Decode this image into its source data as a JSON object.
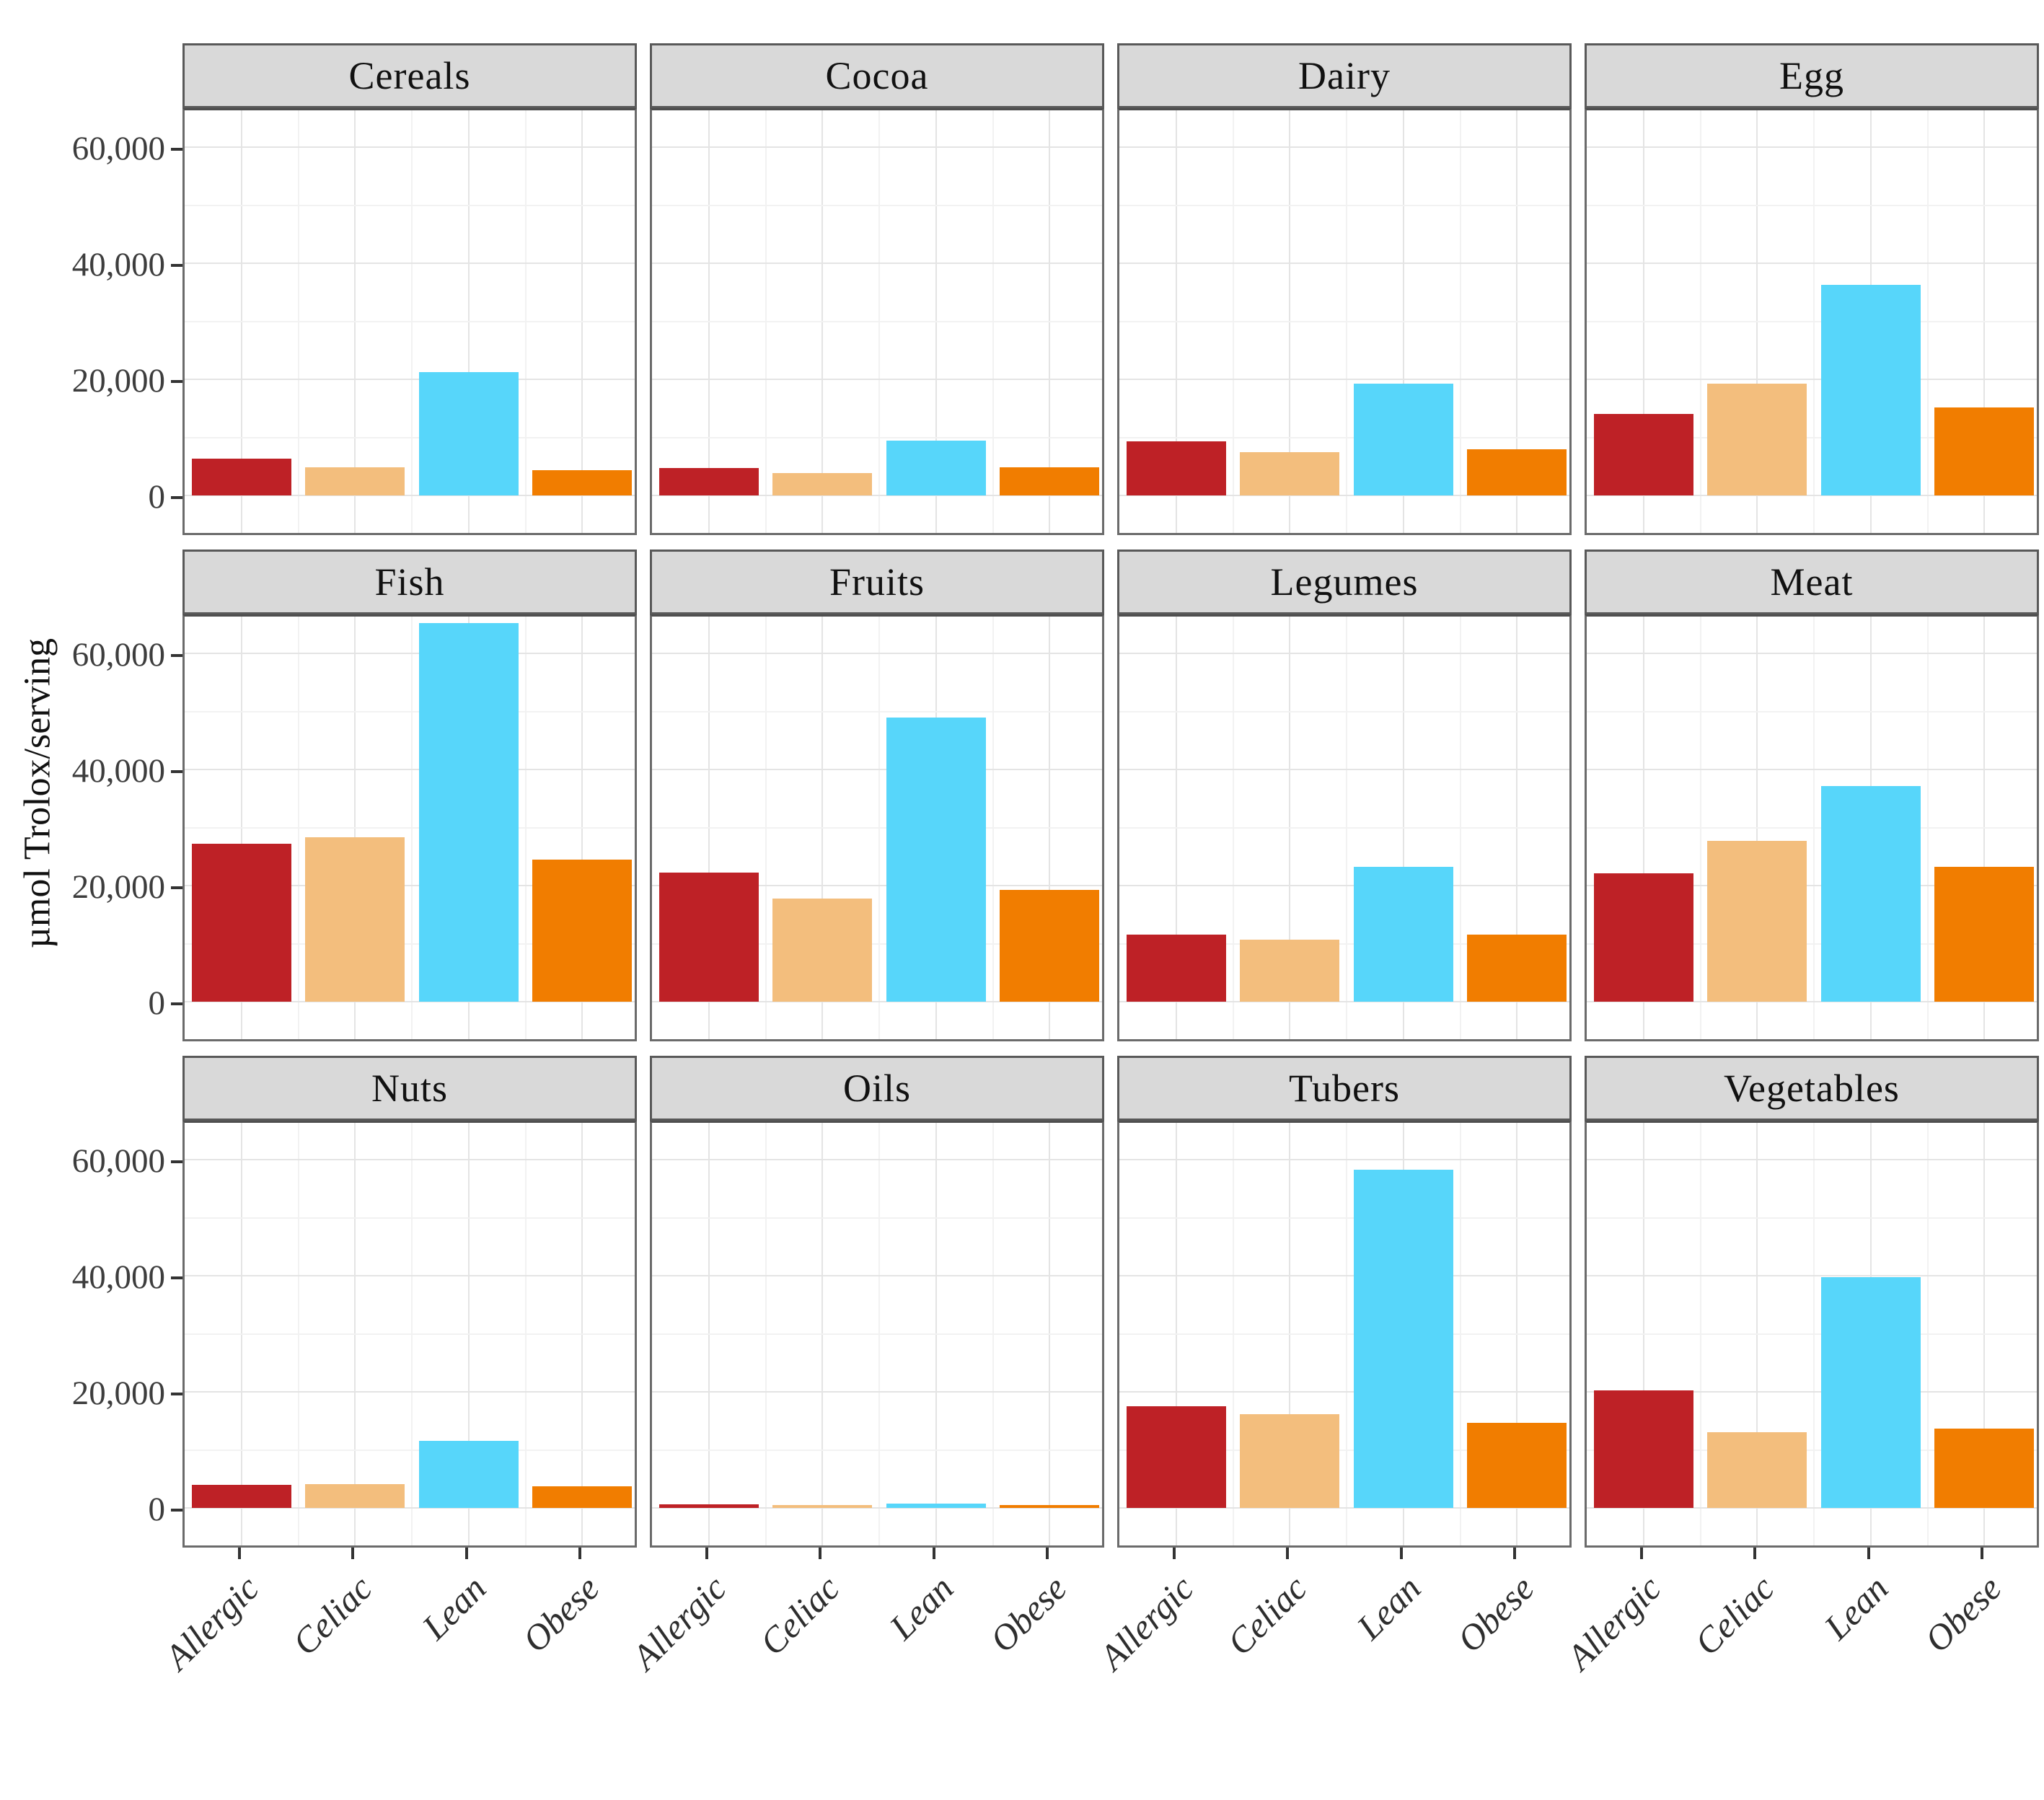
{
  "chart_data": {
    "type": "bar",
    "title": "",
    "xlabel": "",
    "ylabel": "µmol Trolox/serving",
    "categories": [
      "Allergic",
      "Celiac",
      "Lean",
      "Obese"
    ],
    "y_ticks": [
      {
        "value": 0,
        "label": "0"
      },
      {
        "value": 20000,
        "label": "20,000"
      },
      {
        "value": 40000,
        "label": "40,000"
      },
      {
        "value": 60000,
        "label": "60,000"
      }
    ],
    "y_minor_ticks": [
      10000,
      30000,
      50000
    ],
    "ylim": [
      0,
      66000
    ],
    "grid": true,
    "legend_position": "none",
    "facets": [
      {
        "name": "Cereals",
        "values": [
          6300,
          4900,
          21200,
          4400
        ]
      },
      {
        "name": "Cocoa",
        "values": [
          4700,
          3800,
          9400,
          4900
        ]
      },
      {
        "name": "Dairy",
        "values": [
          9300,
          7500,
          19200,
          8000
        ]
      },
      {
        "name": "Egg",
        "values": [
          14000,
          19200,
          36300,
          15200
        ]
      },
      {
        "name": "Fish",
        "values": [
          27200,
          28300,
          65200,
          24500
        ]
      },
      {
        "name": "Fruits",
        "values": [
          22200,
          17800,
          48900,
          19200
        ]
      },
      {
        "name": "Legumes",
        "values": [
          11500,
          10700,
          23200,
          11500
        ]
      },
      {
        "name": "Meat",
        "values": [
          22100,
          27700,
          37100,
          23200
        ]
      },
      {
        "name": "Nuts",
        "values": [
          4000,
          4100,
          11600,
          3700
        ]
      },
      {
        "name": "Oils",
        "values": [
          600,
          400,
          800,
          500
        ]
      },
      {
        "name": "Tubers",
        "values": [
          17500,
          16100,
          58300,
          14600
        ]
      },
      {
        "name": "Vegetables",
        "values": [
          20200,
          13100,
          39800,
          13700
        ]
      }
    ],
    "series_colors": [
      "#BE2126",
      "#F3BE7D",
      "#57D6FA",
      "#F17D00"
    ],
    "colors": {
      "strip_bg": "#d9d9d9",
      "panel_border": "#6b6b6b",
      "grid_major": "#e4e4e4",
      "grid_minor": "#f2f2f2",
      "tick": "#333333",
      "axis_text": "#3d3d3d"
    }
  }
}
